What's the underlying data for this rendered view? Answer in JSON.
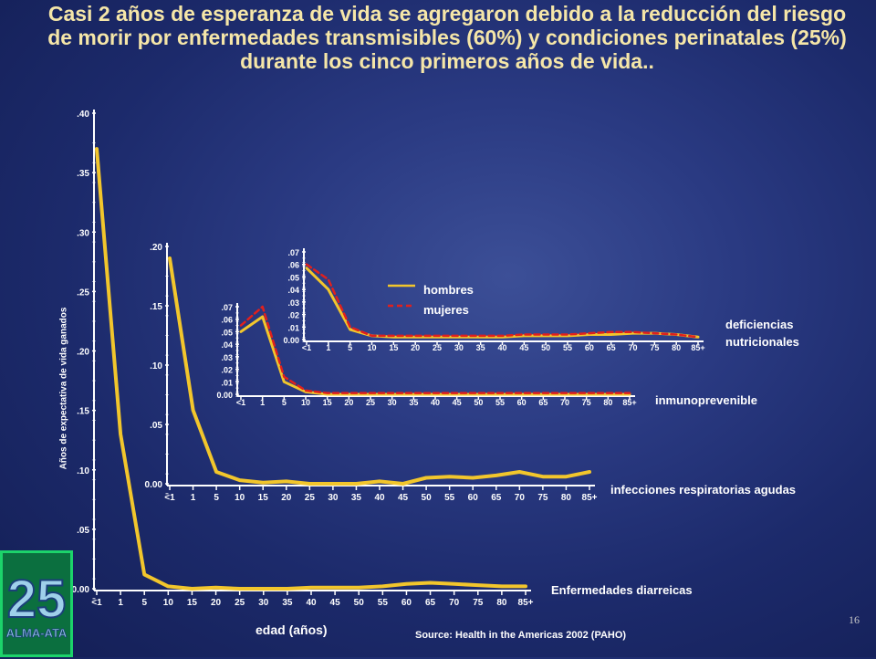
{
  "title": "Casi 2 años de esperanza de vida se agregaron debido a la reducción del riesgo de morir por enfermedades transmisibles (60%) y condiciones perinatales (25%) durante los cinco primeros años de vida..",
  "page_number": "16",
  "source": "Source: Health in the Americas 2002 (PAHO)",
  "logo": {
    "text": "25 ALMA-ATA"
  },
  "colors": {
    "hombres": "#f2c62c",
    "mujeres": "#e0201d",
    "background": "#1c2a6b",
    "title": "#f5e6a8"
  },
  "chart_data": [
    {
      "id": "diarreicas",
      "type": "line",
      "label": "Enfermedades diarreicas",
      "xlabel": "edad (años)",
      "ylabel": "Años de expectativa de vida ganados",
      "categories": [
        "<1",
        "1",
        "5",
        "10",
        "15",
        "20",
        "25",
        "30",
        "35",
        "40",
        "45",
        "50",
        "55",
        "60",
        "65",
        "70",
        "75",
        "80",
        "85+"
      ],
      "yticks": [
        ".40",
        ".35",
        ".30",
        ".25",
        ".20",
        ".15",
        ".10",
        ".05",
        "0.00"
      ],
      "ylim": [
        0,
        0.4
      ],
      "series": [
        {
          "name": "hombres",
          "values": [
            0.37,
            0.13,
            0.012,
            0.002,
            0.0,
            0.001,
            0.0,
            0.0,
            0.0,
            0.001,
            0.001,
            0.001,
            0.002,
            0.004,
            0.005,
            0.004,
            0.003,
            0.002,
            0.002
          ]
        }
      ]
    },
    {
      "id": "respiratorias",
      "type": "line",
      "label": "infecciones respiratorias agudas",
      "categories": [
        "<1",
        "1",
        "5",
        "10",
        "15",
        "20",
        "25",
        "30",
        "35",
        "40",
        "45",
        "50",
        "55",
        "60",
        "65",
        "70",
        "75",
        "80",
        "85+"
      ],
      "yticks": [
        ".20",
        ".15",
        ".10",
        ".05",
        "0.00"
      ],
      "ylim": [
        0,
        0.2
      ],
      "series": [
        {
          "name": "hombres",
          "values": [
            0.19,
            0.062,
            0.01,
            0.003,
            0.001,
            0.002,
            0.0,
            0.0,
            0.0,
            0.002,
            0.0,
            0.005,
            0.006,
            0.005,
            0.007,
            0.01,
            0.006,
            0.006,
            0.01
          ]
        }
      ]
    },
    {
      "id": "inmunoprevenible",
      "type": "line",
      "label": "inmunoprevenible",
      "categories": [
        "<1",
        "1",
        "5",
        "10",
        "15",
        "20",
        "25",
        "30",
        "35",
        "40",
        "45",
        "50",
        "55",
        "60",
        "65",
        "70",
        "75",
        "80",
        "85+"
      ],
      "yticks": [
        ".07",
        ".06",
        ".05",
        ".04",
        ".03",
        ".02",
        ".01",
        "0.00"
      ],
      "ylim": [
        0,
        0.07
      ],
      "series": [
        {
          "name": "hombres",
          "values": [
            0.05,
            0.062,
            0.01,
            0.002,
            0.0,
            0.0,
            0.0,
            0.0,
            0.0,
            0.0,
            0.0,
            0.0,
            0.0,
            0.0,
            0.0,
            0.0,
            0.0,
            0.0,
            0.0
          ]
        },
        {
          "name": "mujeres",
          "values": [
            0.055,
            0.07,
            0.014,
            0.003,
            0.001,
            0.001,
            0.001,
            0.001,
            0.001,
            0.001,
            0.001,
            0.001,
            0.001,
            0.001,
            0.001,
            0.001,
            0.001,
            0.001,
            0.001
          ]
        }
      ]
    },
    {
      "id": "nutricionales",
      "type": "line",
      "label": "deficiencias nutricionales",
      "categories": [
        "<1",
        "1",
        "5",
        "10",
        "15",
        "20",
        "25",
        "30",
        "35",
        "40",
        "45",
        "50",
        "55",
        "60",
        "65",
        "70",
        "75",
        "80",
        "85+"
      ],
      "yticks": [
        ".07",
        ".06",
        ".05",
        ".04",
        ".03",
        ".02",
        ".01",
        "0.00"
      ],
      "ylim": [
        0,
        0.07
      ],
      "series": [
        {
          "name": "hombres",
          "values": [
            0.057,
            0.04,
            0.008,
            0.003,
            0.002,
            0.002,
            0.002,
            0.002,
            0.002,
            0.002,
            0.003,
            0.003,
            0.003,
            0.004,
            0.004,
            0.005,
            0.005,
            0.004,
            0.002
          ]
        },
        {
          "name": "mujeres",
          "values": [
            0.06,
            0.048,
            0.01,
            0.003,
            0.003,
            0.003,
            0.003,
            0.003,
            0.003,
            0.003,
            0.004,
            0.004,
            0.004,
            0.005,
            0.006,
            0.006,
            0.005,
            0.004,
            0.002
          ]
        }
      ]
    }
  ],
  "legend": {
    "hombres": "hombres",
    "mujeres": "mujeres"
  },
  "labels": {
    "diarreicas": "Enfermedades diarreicas",
    "respiratorias": "infecciones respiratorias agudas",
    "inmuno": "inmunoprevenible",
    "nutri_1": "deficiencias",
    "nutri_2": "nutricionales",
    "ylabel": "Años de expectativa de vida ganados",
    "xlabel": "edad (años)"
  }
}
